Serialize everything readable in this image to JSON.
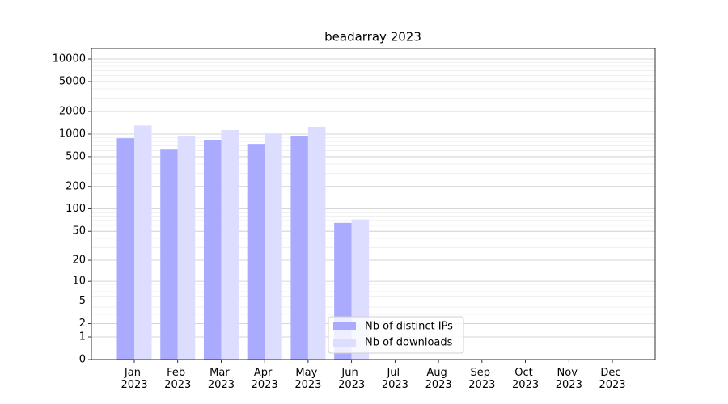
{
  "chart_data": {
    "type": "bar",
    "title": "beadarray 2023",
    "categories": [
      "Jan 2023",
      "Feb 2023",
      "Mar 2023",
      "Apr 2023",
      "May 2023",
      "Jun 2023",
      "Jul 2023",
      "Aug 2023",
      "Sep 2023",
      "Oct 2023",
      "Nov 2023",
      "Dec 2023"
    ],
    "series": [
      {
        "name": "Nb of distinct IPs",
        "color": "#aaaaff",
        "values": [
          880,
          620,
          840,
          740,
          950,
          65,
          0,
          0,
          0,
          0,
          0,
          0
        ]
      },
      {
        "name": "Nb of downloads",
        "color": "#ddddff",
        "values": [
          1300,
          950,
          1130,
          1020,
          1250,
          72,
          0,
          0,
          0,
          0,
          0,
          0
        ]
      }
    ],
    "yscale": "log1p",
    "ylim": [
      0,
      13800
    ],
    "yticks": [
      0,
      1,
      2,
      5,
      10,
      20,
      50,
      100,
      200,
      500,
      1000,
      2000,
      5000,
      10000
    ],
    "minor_yticks": [
      3,
      4,
      6,
      7,
      8,
      9,
      30,
      40,
      60,
      70,
      80,
      90,
      300,
      400,
      600,
      700,
      800,
      900,
      3000,
      4000,
      6000,
      7000,
      8000,
      9000
    ],
    "grid": true,
    "legend": "lower center"
  }
}
